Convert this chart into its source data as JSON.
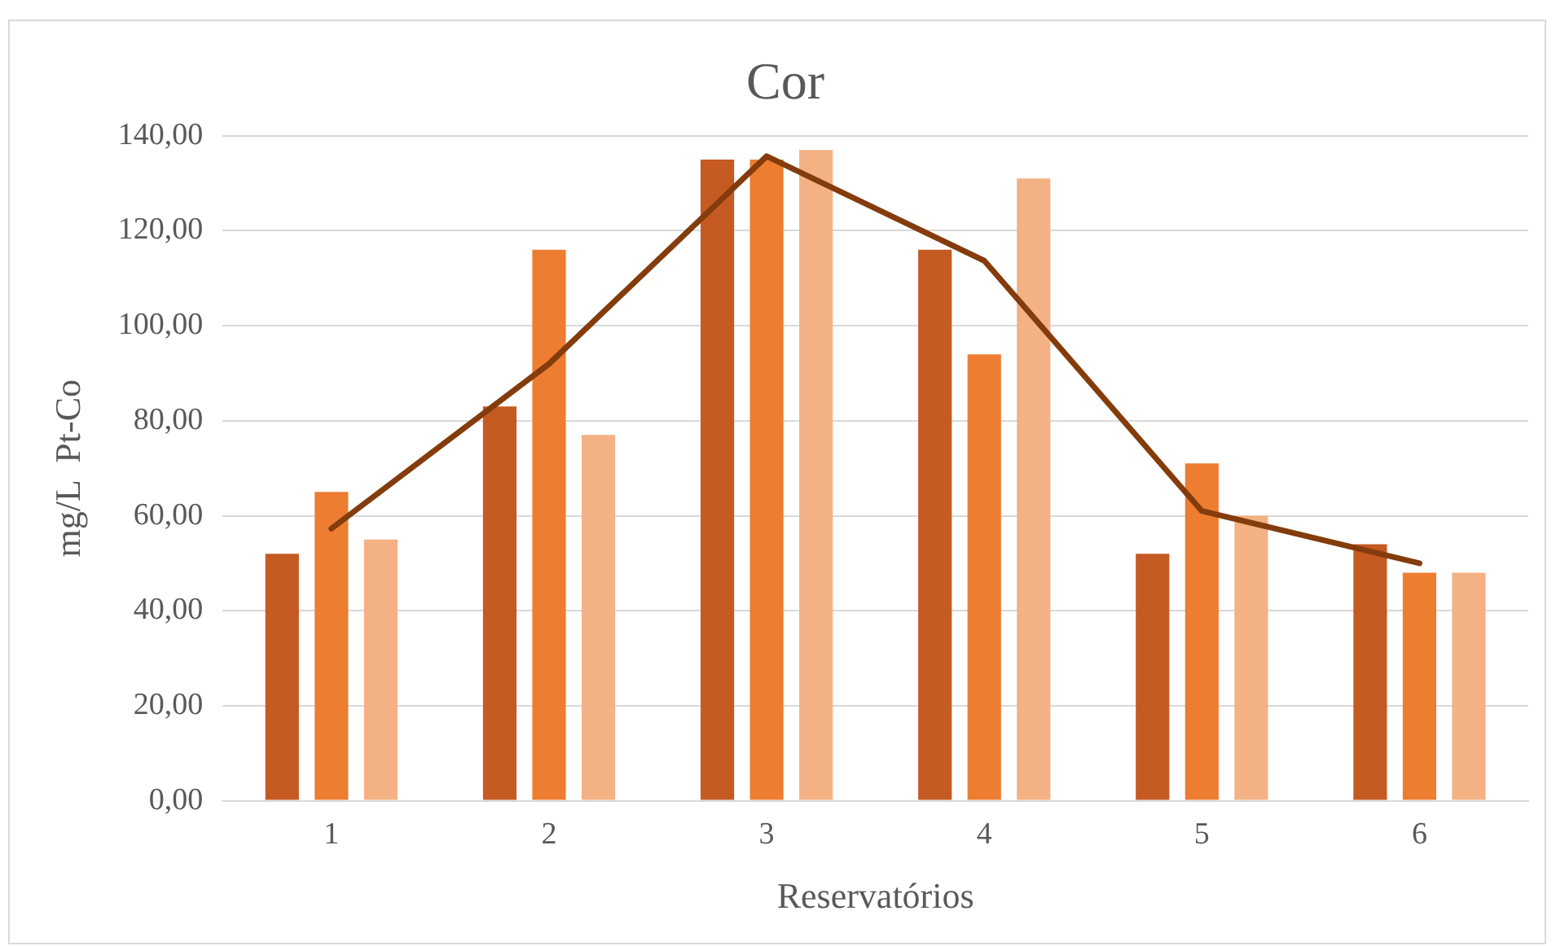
{
  "chart_data": {
    "type": "bar",
    "title": "Cor",
    "xlabel": "Reservatórios",
    "ylabel": "mg/L  Pt-Co",
    "categories": [
      "1",
      "2",
      "3",
      "4",
      "5",
      "6"
    ],
    "series": [
      {
        "color": "#c55a22",
        "values": [
          52,
          83,
          135,
          116,
          52,
          54
        ]
      },
      {
        "color": "#ed7d31",
        "values": [
          65,
          116,
          135,
          94,
          71,
          48
        ]
      },
      {
        "color": "#f4b183",
        "values": [
          55,
          77,
          137,
          131,
          60,
          48
        ]
      },
      {
        "type": "line",
        "color": "#843c0c",
        "values": [
          57.3,
          92,
          135.7,
          113.7,
          61,
          50
        ]
      }
    ],
    "ylim": [
      0,
      140
    ],
    "yticks": [
      {
        "value": 0,
        "label": "0,00"
      },
      {
        "value": 20,
        "label": "20,00"
      },
      {
        "value": 40,
        "label": "40,00"
      },
      {
        "value": 60,
        "label": "60,00"
      },
      {
        "value": 80,
        "label": "80,00"
      },
      {
        "value": 100,
        "label": "100,00"
      },
      {
        "value": 120,
        "label": "120,00"
      },
      {
        "value": 140,
        "label": "140,00"
      }
    ],
    "grid": "y",
    "legend": false,
    "marker": "none"
  }
}
